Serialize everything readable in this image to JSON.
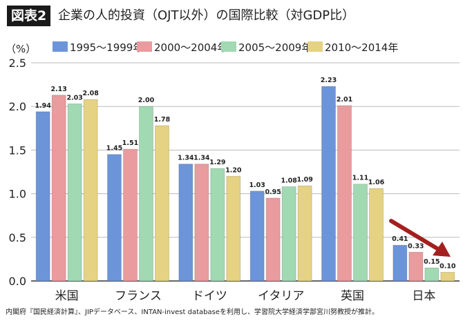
{
  "chart_data": {
    "type": "bar",
    "figure_label": "図表2",
    "title": "企業の人的投資（OJT以外）の国際比較（対GDP比）",
    "ylabel": "（%）",
    "ylim": [
      0,
      2.5
    ],
    "yticks": [
      "0.0",
      "0.5",
      "1.0",
      "1.5",
      "2.0",
      "2.5"
    ],
    "grid": true,
    "legend_position": "top",
    "categories": [
      "米国",
      "フランス",
      "ドイツ",
      "イタリア",
      "英国",
      "日本"
    ],
    "series": [
      {
        "name": "1995〜1999年",
        "color": "#6c95d9",
        "values": [
          1.94,
          1.45,
          1.34,
          1.03,
          2.23,
          0.41
        ]
      },
      {
        "name": "2000〜2004年",
        "color": "#e99b9d",
        "values": [
          2.13,
          1.51,
          1.34,
          0.95,
          2.01,
          0.33
        ]
      },
      {
        "name": "2005〜2009年",
        "color": "#a0d9b2",
        "values": [
          2.03,
          2.0,
          1.29,
          1.08,
          1.11,
          0.15
        ]
      },
      {
        "name": "2010〜2014年",
        "color": "#e5d282",
        "values": [
          2.08,
          1.78,
          1.2,
          1.09,
          1.06,
          0.1
        ]
      }
    ],
    "annotation": {
      "type": "arrow",
      "color": "#a3201f",
      "target": "日本"
    },
    "source": "内閣府『国民経済計算』、JIPデータベース、INTAN-invest databaseを利用し、学習院大学経済学部宮川努教授が推計。"
  }
}
